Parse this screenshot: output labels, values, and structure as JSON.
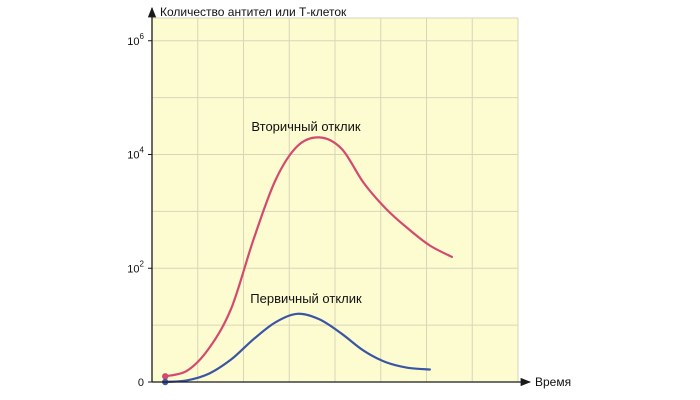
{
  "chart_data": {
    "type": "line",
    "ylabel": "Количество антител или Т-клеток",
    "xlabel": "Время",
    "y_scale": "log",
    "y_ticks": [
      {
        "value": 0,
        "label": "0"
      },
      {
        "value": 2,
        "base": "10",
        "exp": "2"
      },
      {
        "value": 4,
        "base": "10",
        "exp": "4"
      },
      {
        "value": 6,
        "base": "10",
        "exp": "6"
      }
    ],
    "grid": true,
    "colors": {
      "plot_background": "#fdfbd0",
      "grid": "#d9d6b8",
      "axis": "#1a1a1a",
      "secondary": "#d44a6e",
      "primary": "#3a55a4"
    },
    "series": [
      {
        "name": "Вторичный отклик",
        "color": "#d44a6e",
        "marker": "start",
        "points": [
          [
            0.0,
            0.1
          ],
          [
            0.5,
            0.2
          ],
          [
            1.0,
            0.6
          ],
          [
            1.5,
            1.3
          ],
          [
            2.0,
            2.5
          ],
          [
            2.5,
            3.55
          ],
          [
            3.0,
            4.15
          ],
          [
            3.5,
            4.3
          ],
          [
            4.0,
            4.1
          ],
          [
            4.5,
            3.5
          ],
          [
            5.0,
            3.05
          ],
          [
            5.5,
            2.7
          ],
          [
            6.0,
            2.4
          ],
          [
            6.5,
            2.2
          ]
        ]
      },
      {
        "name": "Первичный отклик",
        "color": "#3a55a4",
        "marker": "start",
        "points": [
          [
            0.0,
            0.0
          ],
          [
            0.5,
            0.03
          ],
          [
            1.0,
            0.15
          ],
          [
            1.5,
            0.4
          ],
          [
            2.0,
            0.75
          ],
          [
            2.5,
            1.05
          ],
          [
            3.0,
            1.2
          ],
          [
            3.5,
            1.1
          ],
          [
            4.0,
            0.85
          ],
          [
            4.5,
            0.55
          ],
          [
            5.0,
            0.35
          ],
          [
            5.5,
            0.25
          ],
          [
            6.0,
            0.22
          ]
        ]
      }
    ],
    "xlim": [
      -0.3,
      8.0
    ],
    "ylim": [
      0,
      6.4
    ]
  }
}
